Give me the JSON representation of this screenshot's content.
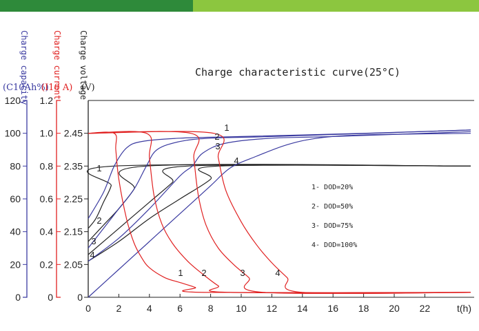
{
  "chart_data": {
    "type": "line",
    "title": "Charge characteristic curve(25°C)",
    "xlabel": "t(h)",
    "x_ticks": [
      0,
      2,
      4,
      6,
      8,
      10,
      12,
      14,
      16,
      18,
      20,
      22
    ],
    "xlim": [
      0,
      25
    ],
    "axes": {
      "capacity": {
        "label_top": "Charge capacity",
        "unit": "(C10Ah%)",
        "ticks": [
          0,
          20,
          40,
          60,
          80,
          100,
          120
        ],
        "range": [
          0,
          120
        ],
        "color": "#3a3aa0"
      },
      "current": {
        "label_top": "Charge current",
        "unit": "(I10 A)",
        "ticks": [
          "0",
          "0.2",
          "0.4",
          "0.6",
          "0.8",
          "1.0",
          "1.2"
        ],
        "range": [
          0,
          1.2
        ],
        "color": "#e02020"
      },
      "voltage": {
        "label_top": "Charge voltage",
        "unit": "(V)",
        "ticks": [
          "0",
          "2.05",
          "2.15",
          "2.25",
          "2.35",
          "2.45"
        ],
        "color": "#222222"
      }
    },
    "legend": [
      "1- DOD=20%",
      "2- DOD=50%",
      "3- DOD=75%",
      "4- DOD=100%"
    ],
    "series": {
      "voltage": [
        {
          "name": "1",
          "points": [
            [
              0,
              2.16
            ],
            [
              0.5,
              2.19
            ],
            [
              1.0,
              2.24
            ],
            [
              1.5,
              2.29
            ],
            [
              1.7,
              2.35
            ],
            [
              25,
              2.35
            ]
          ]
        },
        {
          "name": "2",
          "points": [
            [
              0,
              2.12
            ],
            [
              1,
              2.17
            ],
            [
              2,
              2.22
            ],
            [
              3,
              2.28
            ],
            [
              3.8,
              2.35
            ],
            [
              25,
              2.35
            ]
          ]
        },
        {
          "name": "3",
          "points": [
            [
              0,
              2.08
            ],
            [
              2,
              2.16
            ],
            [
              4,
              2.24
            ],
            [
              5.5,
              2.3
            ],
            [
              6.5,
              2.35
            ],
            [
              25,
              2.35
            ]
          ]
        },
        {
          "name": "4",
          "points": [
            [
              0,
              2.06
            ],
            [
              2,
              2.12
            ],
            [
              4,
              2.19
            ],
            [
              6,
              2.25
            ],
            [
              8,
              2.31
            ],
            [
              8.5,
              2.35
            ],
            [
              25,
              2.35
            ]
          ]
        }
      ],
      "capacity": [
        {
          "name": "1",
          "points": [
            [
              0,
              48
            ],
            [
              1,
              64
            ],
            [
              1.7,
              80
            ],
            [
              2.5,
              91
            ],
            [
              3.5,
              95
            ],
            [
              6,
              97
            ],
            [
              10,
              98
            ],
            [
              18,
              100
            ],
            [
              25,
              102
            ]
          ]
        },
        {
          "name": "2",
          "points": [
            [
              0,
              30
            ],
            [
              1,
              42
            ],
            [
              2,
              54
            ],
            [
              3,
              66
            ],
            [
              3.8,
              80
            ],
            [
              4.5,
              90
            ],
            [
              6,
              95
            ],
            [
              8,
              97
            ],
            [
              12,
              98
            ],
            [
              25,
              102
            ]
          ]
        },
        {
          "name": "3",
          "points": [
            [
              0,
              22
            ],
            [
              2,
              36
            ],
            [
              4,
              54
            ],
            [
              6,
              74
            ],
            [
              6.8,
              80
            ],
            [
              7.5,
              88
            ],
            [
              9,
              94
            ],
            [
              12,
              97
            ],
            [
              16,
              98
            ],
            [
              25,
              101
            ]
          ]
        },
        {
          "name": "4",
          "points": [
            [
              0,
              0
            ],
            [
              2,
              17
            ],
            [
              4,
              34
            ],
            [
              6,
              51
            ],
            [
              8,
              68
            ],
            [
              9.3,
              79
            ],
            [
              11,
              86
            ],
            [
              13,
              93
            ],
            [
              15,
              97
            ],
            [
              18,
              99
            ],
            [
              25,
              100
            ]
          ]
        }
      ],
      "current": [
        {
          "name": "1",
          "points": [
            [
              0,
              1.0
            ],
            [
              1.7,
              1.0
            ],
            [
              1.8,
              0.9
            ],
            [
              2,
              0.72
            ],
            [
              2.5,
              0.48
            ],
            [
              3,
              0.33
            ],
            [
              3.5,
              0.24
            ],
            [
              4,
              0.18
            ],
            [
              5,
              0.12
            ],
            [
              6,
              0.09
            ],
            [
              7,
              0.06
            ],
            [
              7.6,
              0.03
            ],
            [
              25,
              0.03
            ]
          ]
        },
        {
          "name": "2",
          "points": [
            [
              0,
              1.0
            ],
            [
              3.8,
              1.0
            ],
            [
              4,
              0.85
            ],
            [
              4.3,
              0.62
            ],
            [
              4.8,
              0.45
            ],
            [
              5.5,
              0.33
            ],
            [
              6.5,
              0.22
            ],
            [
              7.5,
              0.14
            ],
            [
              8.5,
              0.07
            ],
            [
              9.3,
              0.03
            ],
            [
              25,
              0.03
            ]
          ]
        },
        {
          "name": "3",
          "points": [
            [
              0,
              1.0
            ],
            [
              6.7,
              1.0
            ],
            [
              6.9,
              0.85
            ],
            [
              7.2,
              0.62
            ],
            [
              7.7,
              0.44
            ],
            [
              8.5,
              0.3
            ],
            [
              9.5,
              0.2
            ],
            [
              10.5,
              0.12
            ],
            [
              11.5,
              0.03
            ],
            [
              25,
              0.03
            ]
          ]
        },
        {
          "name": "4",
          "points": [
            [
              0,
              1.0
            ],
            [
              8.2,
              1.0
            ],
            [
              8.5,
              0.85
            ],
            [
              9,
              0.65
            ],
            [
              10,
              0.46
            ],
            [
              11,
              0.32
            ],
            [
              12,
              0.21
            ],
            [
              13,
              0.12
            ],
            [
              14,
              0.03
            ],
            [
              25,
              0.03
            ]
          ]
        }
      ]
    },
    "curve_labels": {
      "capacity": [
        "1",
        "2",
        "3",
        "4"
      ],
      "voltage": [
        "1",
        "2",
        "3",
        "4"
      ],
      "current": [
        "1",
        "2",
        "3",
        "4"
      ]
    }
  }
}
